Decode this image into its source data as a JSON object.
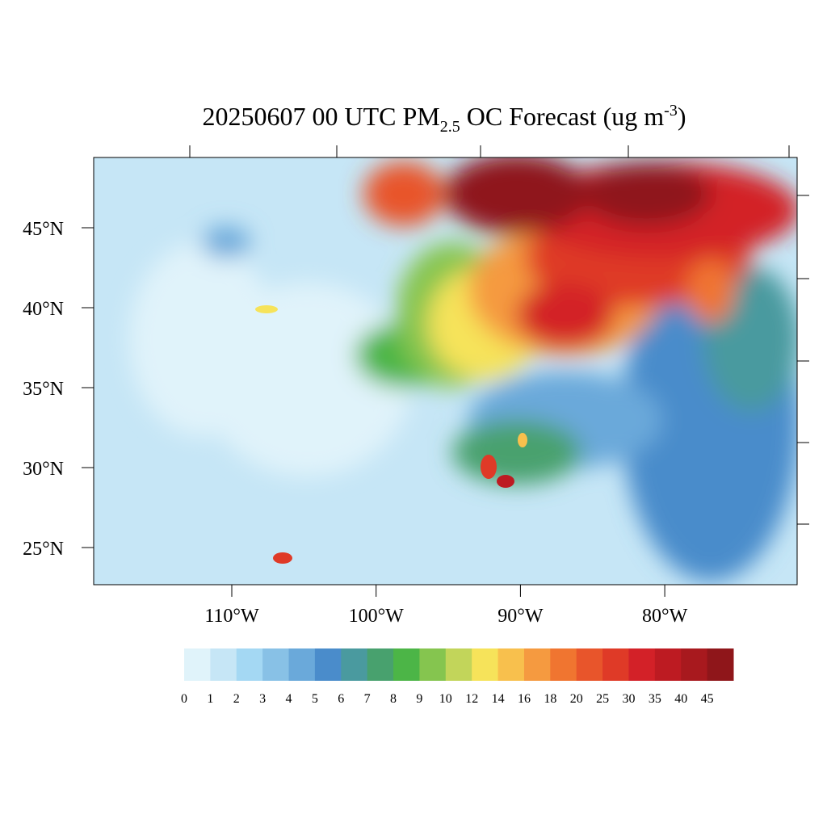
{
  "title": {
    "main": "20250607 00 UTC PM",
    "subscript": "2.5",
    "after": " OC Forecast (ug m",
    "superscript": "-3",
    "end": ")"
  },
  "latitude_ticks": [
    {
      "value": 45,
      "label": "45°N"
    },
    {
      "value": 40,
      "label": "40°N"
    },
    {
      "value": 35,
      "label": "35°N"
    },
    {
      "value": 30,
      "label": "30°N"
    },
    {
      "value": 25,
      "label": "25°N"
    }
  ],
  "longitude_ticks": [
    {
      "value": 110,
      "label": "110°W"
    },
    {
      "value": 100,
      "label": "100°W"
    },
    {
      "value": 90,
      "label": "90°W"
    },
    {
      "value": 80,
      "label": "80°W"
    }
  ],
  "colorbar": {
    "levels": [
      0,
      1,
      2,
      3,
      4,
      5,
      6,
      7,
      8,
      9,
      10,
      12,
      14,
      16,
      18,
      20,
      25,
      30,
      35,
      40,
      45
    ],
    "colors": [
      "#e0f3fa",
      "#c6e6f6",
      "#a4d8f3",
      "#88c1e6",
      "#6aa9da",
      "#4a8ccb",
      "#4a9a9f",
      "#48a16e",
      "#4cb547",
      "#85c54f",
      "#c2d55a",
      "#f6e35a",
      "#f8c04d",
      "#f59a40",
      "#f07530",
      "#e8552b",
      "#df3a27",
      "#d32128",
      "#bd1b22",
      "#a8191e",
      "#8f161a"
    ]
  }
}
